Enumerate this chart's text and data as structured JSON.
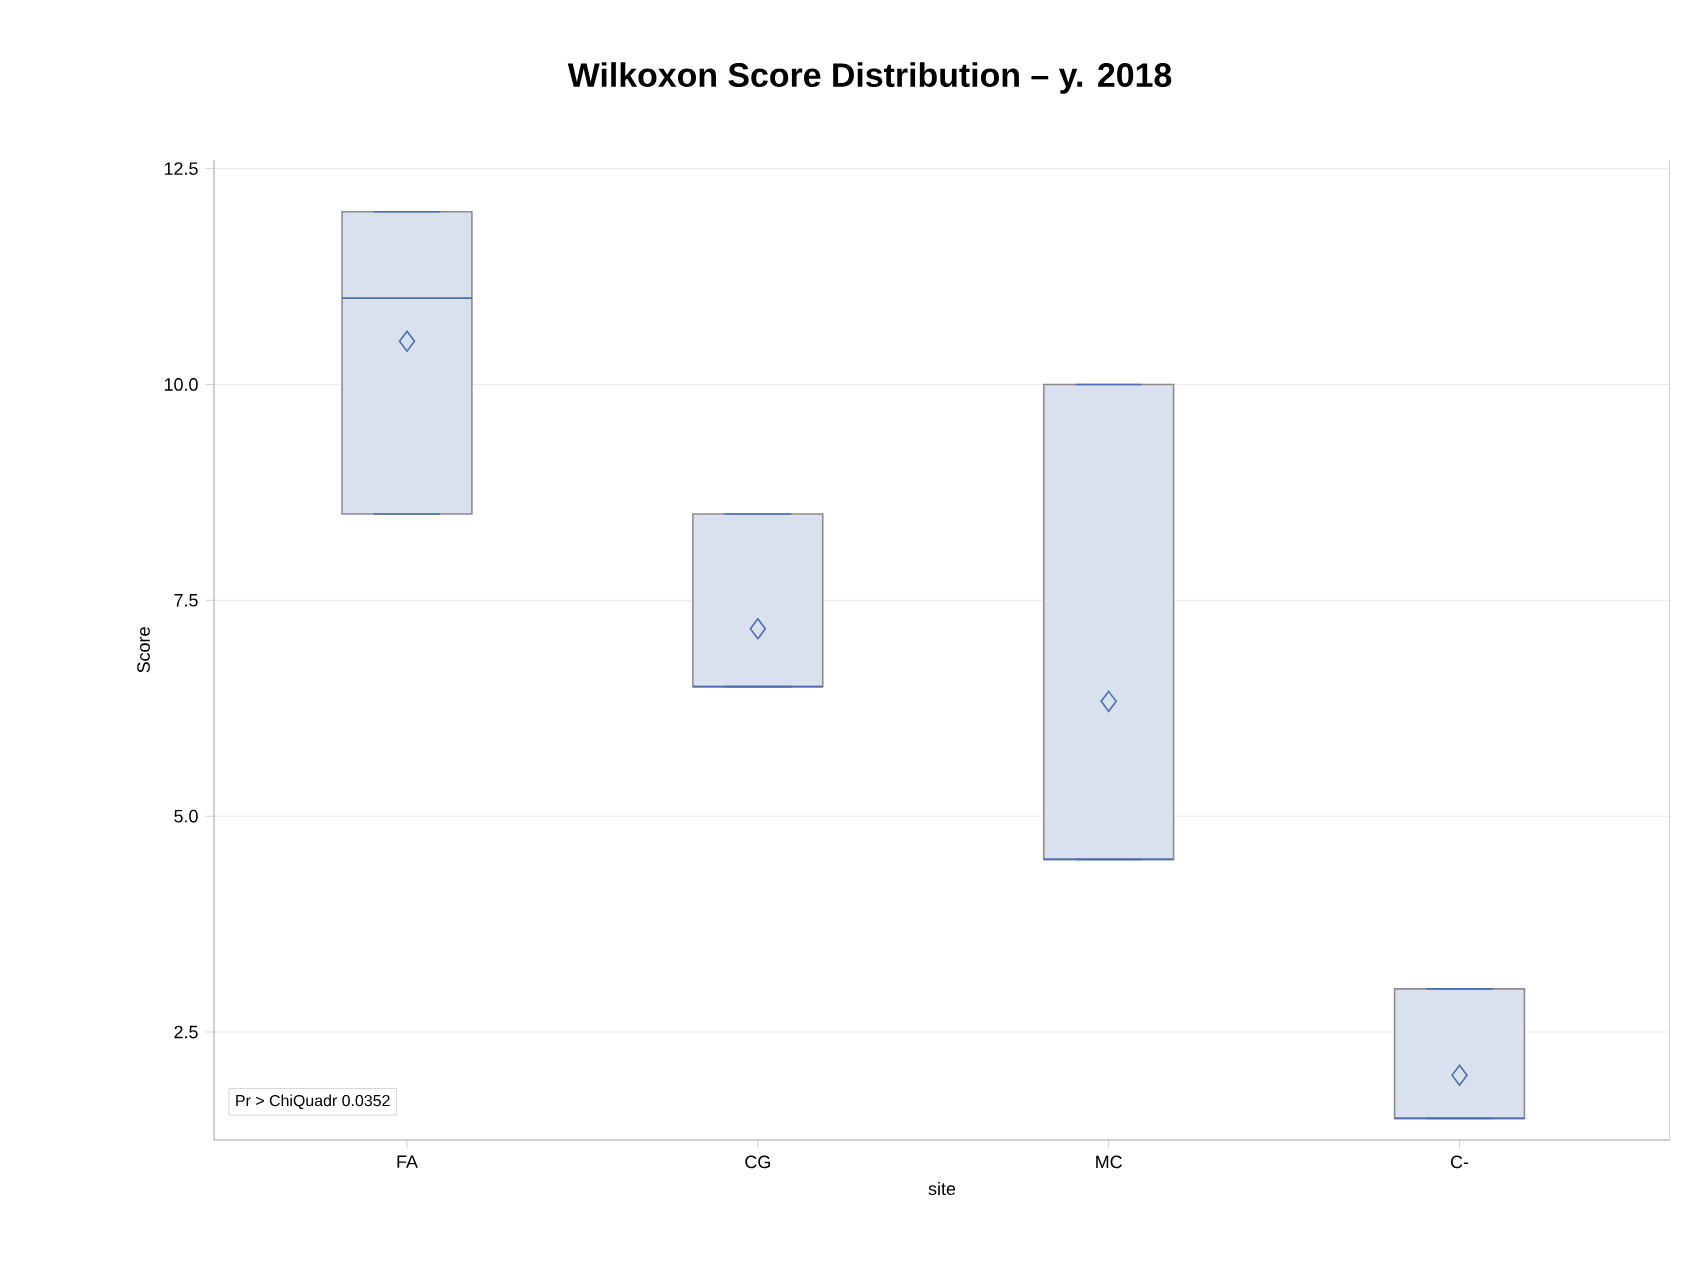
{
  "chart_data": {
    "type": "box",
    "title": "Wilkoxon Score Distribution – y. 2018",
    "xlabel": "site",
    "ylabel": "Score",
    "categories": [
      "FA",
      "CG",
      "MC",
      "C-"
    ],
    "boxes": [
      {
        "low": 8.5,
        "q1": 8.5,
        "median": 11,
        "q3": 12,
        "high": 12,
        "mean": 10.5
      },
      {
        "low": 6.5,
        "q1": 6.5,
        "median": 6.5,
        "q3": 8.5,
        "high": 8.5,
        "mean": 7.17
      },
      {
        "low": 4.5,
        "q1": 4.5,
        "median": 4.5,
        "q3": 10,
        "high": 10,
        "mean": 6.33
      },
      {
        "low": 1.5,
        "q1": 1.5,
        "median": 1.5,
        "q3": 3,
        "high": 3,
        "mean": 2.0
      }
    ],
    "ylim": [
      1.25,
      12.6
    ],
    "yticks": [
      {
        "value": 2.5,
        "label": "2.5"
      },
      {
        "value": 5,
        "label": "5.0"
      },
      {
        "value": 7.5,
        "label": "7.5"
      },
      {
        "value": 10,
        "label": "10.0"
      },
      {
        "value": 12.5,
        "label": "12.5"
      }
    ],
    "grid": "y",
    "annotations": [
      "Pr > ChiQuadr   0.0352"
    ]
  }
}
